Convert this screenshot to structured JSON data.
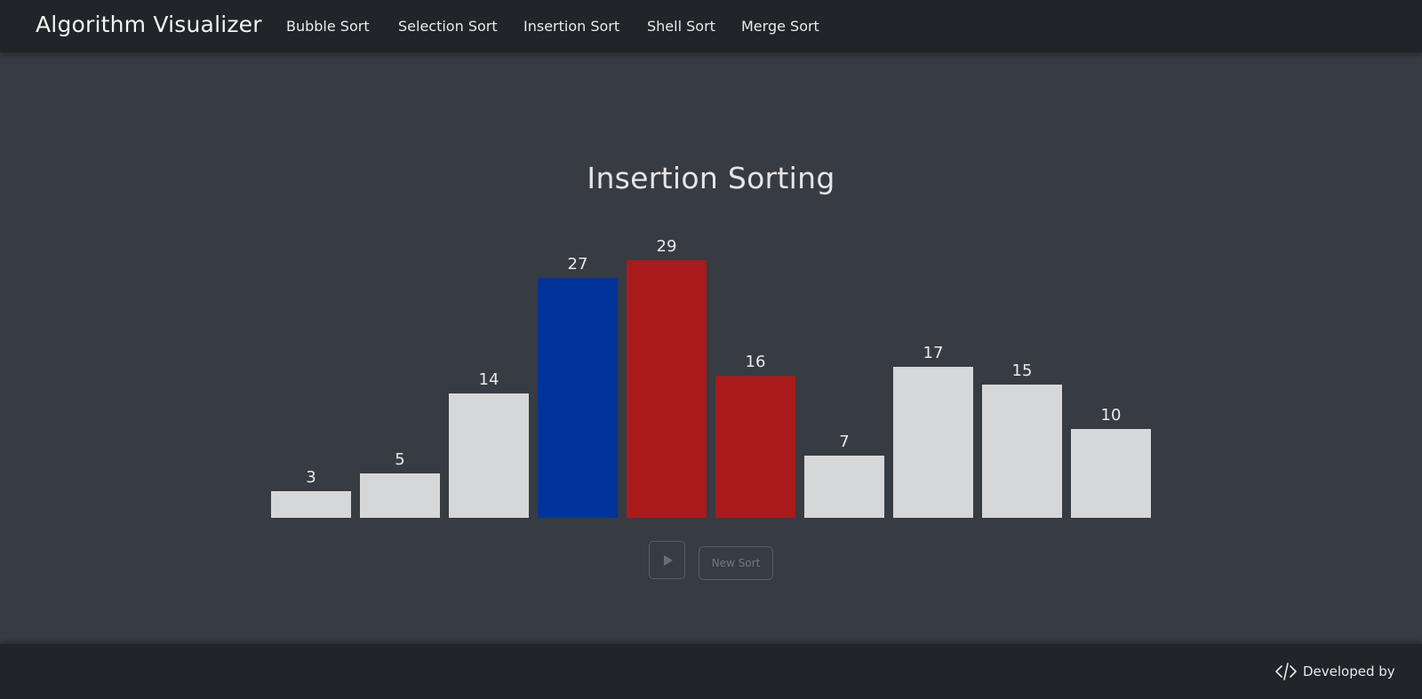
{
  "navbar": {
    "brand": "Algorithm Visualizer",
    "links": [
      "Bubble Sort",
      "Selection Sort",
      "Insertion Sort",
      "Shell Sort",
      "Merge Sort"
    ]
  },
  "main": {
    "title": "Insertion Sorting",
    "new_sort_label": "New Sort"
  },
  "colors": {
    "default_bar": "#d6d7d9",
    "current_bar": "#00349c",
    "compare_bar": "#a91a1b"
  },
  "chart_data": {
    "type": "bar",
    "values": [
      3,
      5,
      14,
      27,
      29,
      16,
      7,
      17,
      15,
      10
    ],
    "bar_states": [
      "default",
      "default",
      "default",
      "current",
      "compare",
      "compare",
      "default",
      "default",
      "default",
      "default"
    ],
    "data_labels": [
      "3",
      "5",
      "14",
      "27",
      "29",
      "16",
      "7",
      "17",
      "15",
      "10"
    ]
  },
  "footer": {
    "icon": "code-icon",
    "text": "Developed by"
  }
}
